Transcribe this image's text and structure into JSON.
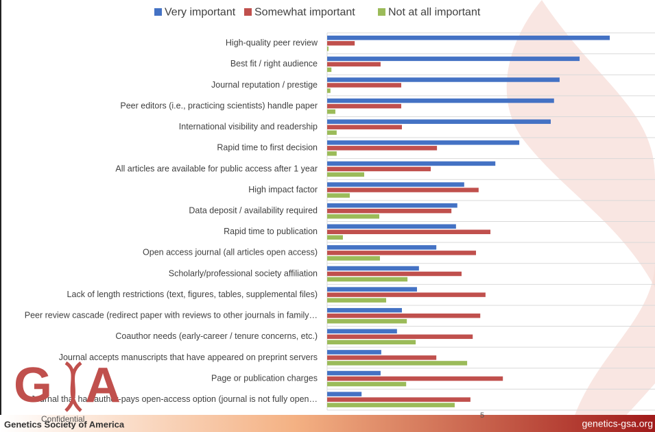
{
  "chart_data": {
    "type": "hbar",
    "categories": [
      "High-quality peer review",
      "Best fit / right audience",
      "Journal reputation / prestige",
      "Peer editors (i.e., practicing scientists) handle paper",
      "International visibility and readership",
      "Rapid time to first decision",
      "All articles are available for public access after 1 year",
      "High impact factor",
      "Data deposit / availability required",
      "Rapid time to publication",
      "Open access journal (all articles open access)",
      "Scholarly/professional society affiliation",
      "Lack of length restrictions (text, figures, tables, supplemental files)",
      "Peer review cascade (redirect paper with reviews to other journals in family…",
      "Coauthor needs (early-career / tenure concerns, etc.)",
      "Journal accepts manuscripts that have appeared on preprint servers",
      "Page or publication charges",
      "Journal that has author-pays open-access option (journal is not fully open…"
    ],
    "series": [
      {
        "name": "Very important",
        "color": "#4472c4",
        "values": [
          86.2,
          77.0,
          70.9,
          69.2,
          68.2,
          58.6,
          51.3,
          41.8,
          39.7,
          39.3,
          33.3,
          28.0,
          27.4,
          22.8,
          21.3,
          16.5,
          16.3,
          10.5
        ]
      },
      {
        "name": "Somewhat important",
        "color": "#c0504d",
        "values": [
          8.4,
          16.3,
          22.6,
          22.6,
          22.8,
          33.5,
          31.6,
          46.2,
          37.9,
          49.8,
          45.4,
          41.0,
          48.3,
          46.7,
          44.4,
          33.3,
          53.6,
          43.7
        ]
      },
      {
        "name": "Not at all important",
        "color": "#9bbb59",
        "values": [
          0.4,
          1.3,
          1.0,
          2.5,
          2.9,
          2.9,
          11.3,
          6.9,
          15.9,
          4.8,
          16.1,
          24.5,
          18.0,
          24.3,
          27.0,
          42.7,
          24.1,
          38.9
        ]
      }
    ],
    "xlim": [
      0,
      100
    ],
    "legend": "top",
    "grid": true
  },
  "slide": {
    "logo_left": "G",
    "logo_right": "A",
    "confidential": "Confidential",
    "organization": "Genetics Society of America",
    "website": "genetics-gsa.org",
    "page_number": "5"
  }
}
